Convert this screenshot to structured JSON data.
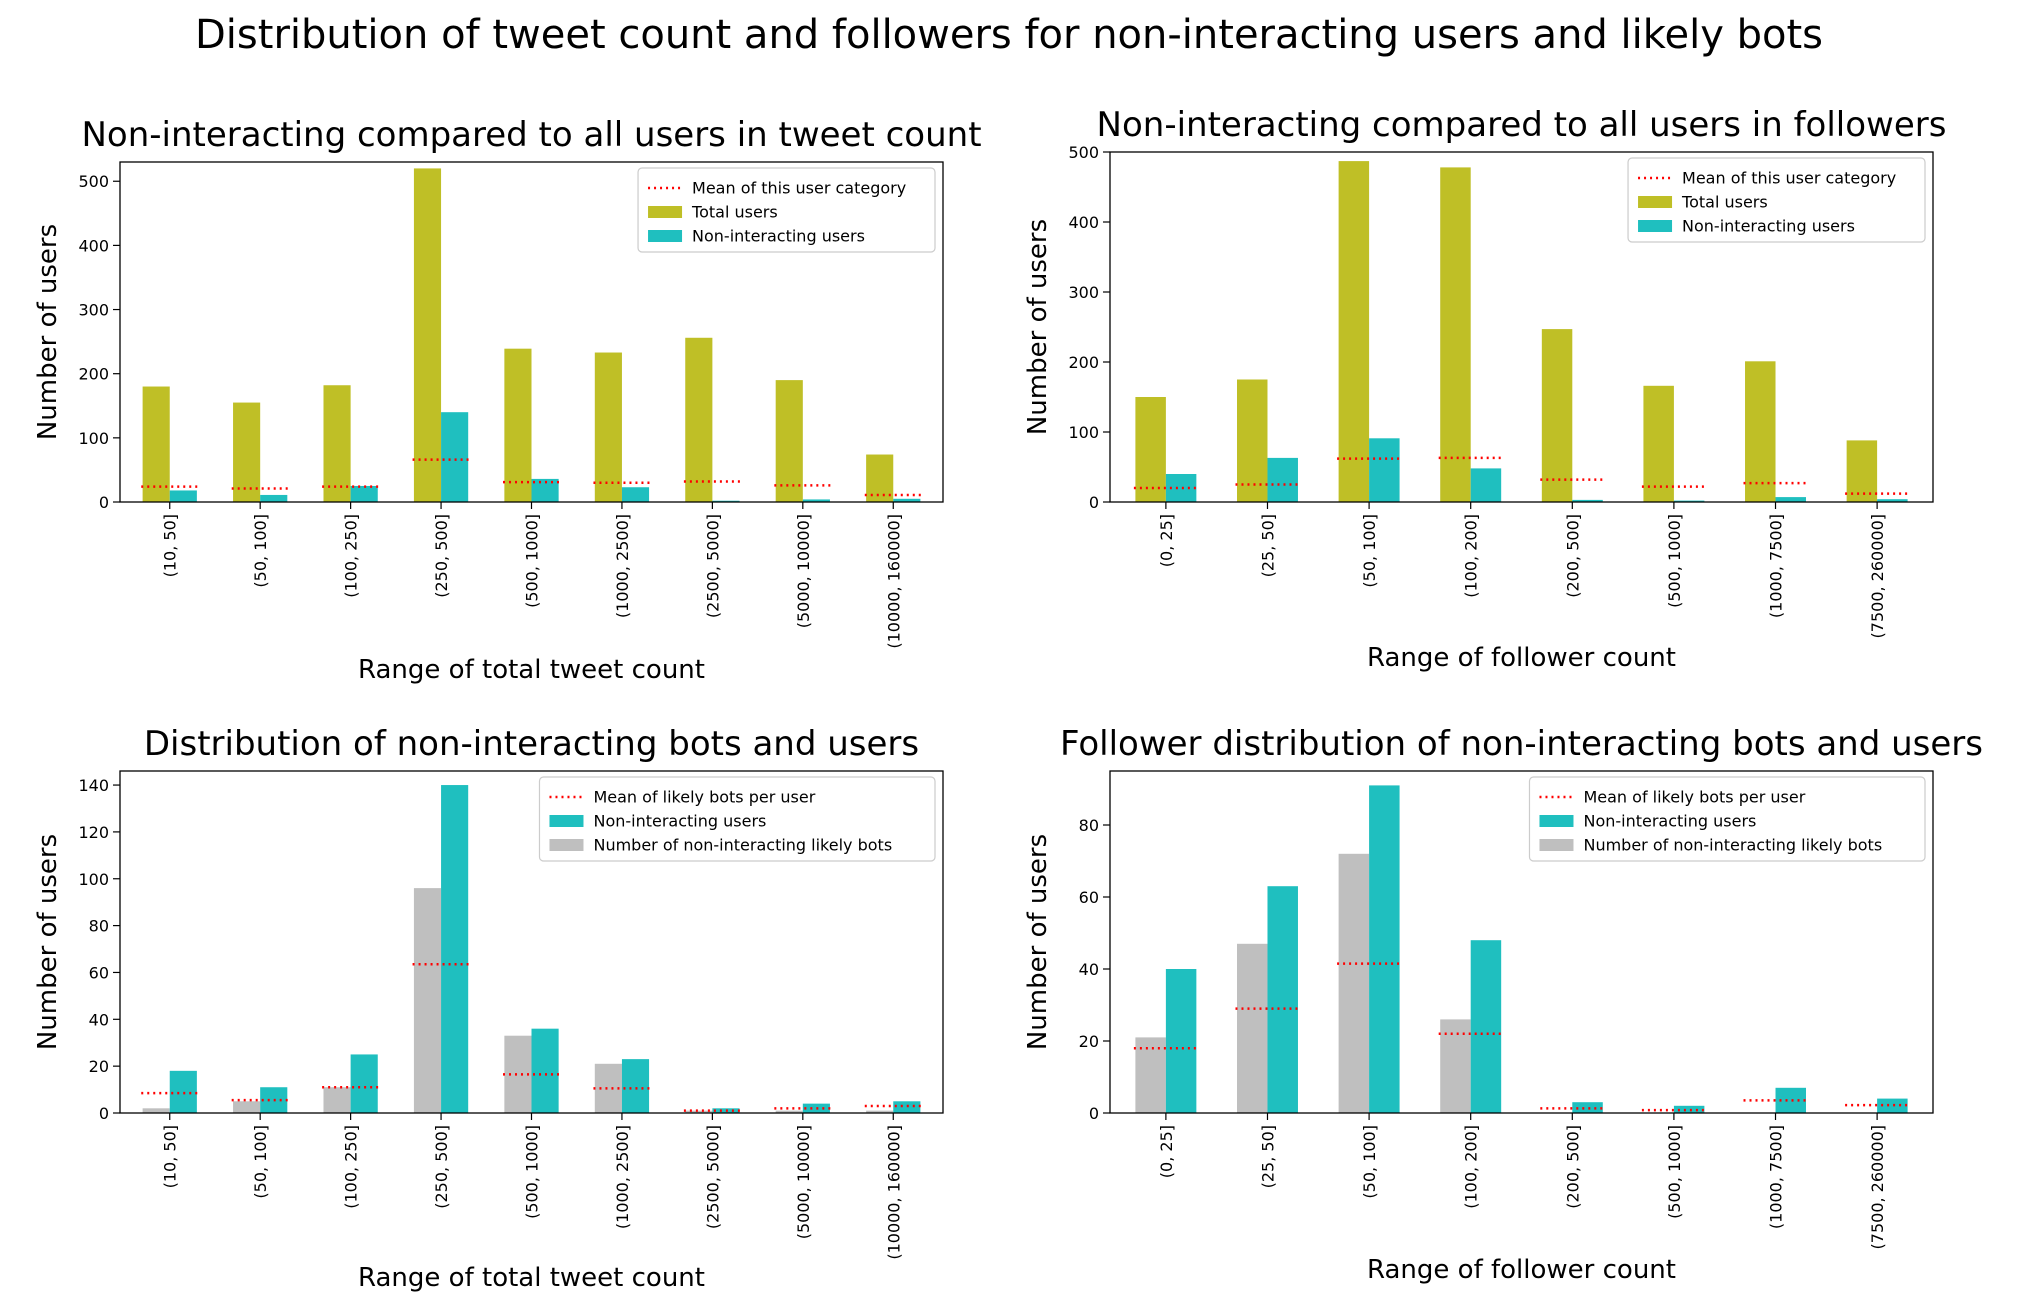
{
  "page_title": "Distribution of tweet count and followers for non-interacting users and likely bots",
  "colors": {
    "total": "#bfbf26",
    "noninteract": "#1fbfbf",
    "bots": "#bfbfbf",
    "mean": "#ff0000"
  },
  "chart_data": [
    {
      "type": "bar",
      "title": "Non-interacting compared to all users in tweet count",
      "xlabel": "Range of total tweet count",
      "ylabel": "Number of users",
      "ylim": [
        0,
        530
      ],
      "yticks": [
        0,
        100,
        200,
        300,
        400,
        500
      ],
      "legend_position": "top-right",
      "categories": [
        "(10, 50]",
        "(50, 100]",
        "(100, 250]",
        "(250, 500]",
        "(500, 1000]",
        "(1000, 2500]",
        "(2500, 5000]",
        "(5000, 10000]",
        "(10000, 160000]"
      ],
      "series": [
        {
          "name": "Total users",
          "color": "#bfbf26",
          "values": [
            180,
            155,
            182,
            520,
            239,
            233,
            256,
            190,
            74
          ]
        },
        {
          "name": "Non-interacting users",
          "color": "#1fbfbf",
          "values": [
            18,
            11,
            25,
            140,
            36,
            23,
            2,
            4,
            5
          ]
        }
      ],
      "means": {
        "name": "Mean of this user category",
        "color": "#ff0000",
        "values": [
          24,
          21,
          24,
          66,
          31,
          30,
          32,
          26,
          11
        ]
      }
    },
    {
      "type": "bar",
      "title": "Non-interacting compared to all users in followers",
      "xlabel": "Range of follower count",
      "ylabel": "Number of users",
      "ylim": [
        0,
        500
      ],
      "yticks": [
        0,
        100,
        200,
        300,
        400,
        500
      ],
      "legend_position": "top-right",
      "categories": [
        "(0, 25]",
        "(25, 50]",
        "(50, 100]",
        "(100, 200]",
        "(200, 500]",
        "(500, 1000]",
        "(1000, 7500]",
        "(7500, 260000]"
      ],
      "series": [
        {
          "name": "Total users",
          "color": "#bfbf26",
          "values": [
            150,
            175,
            487,
            478,
            247,
            166,
            201,
            88
          ]
        },
        {
          "name": "Non-interacting users",
          "color": "#1fbfbf",
          "values": [
            40,
            63,
            91,
            48,
            3,
            2,
            7,
            4
          ]
        }
      ],
      "means": {
        "name": "Mean of this user category",
        "color": "#ff0000",
        "values": [
          20,
          25,
          62,
          63,
          32,
          22,
          27,
          12
        ]
      }
    },
    {
      "type": "bar",
      "title": "Distribution of non-interacting bots and users",
      "xlabel": "Range of total tweet count",
      "ylabel": "Number of users",
      "ylim": [
        0,
        146
      ],
      "yticks": [
        0,
        20,
        40,
        60,
        80,
        100,
        120,
        140
      ],
      "legend_position": "top-right",
      "legend_order": [
        "means",
        1,
        0
      ],
      "categories": [
        "(10, 50]",
        "(50, 100]",
        "(100, 250]",
        "(250, 500]",
        "(500, 1000]",
        "(1000, 2500]",
        "(2500, 5000]",
        "(5000, 10000]",
        "(10000, 160000]"
      ],
      "series": [
        {
          "name": "Number of non-interacting likely bots",
          "color": "#bfbfbf",
          "values": [
            2,
            5,
            11,
            96,
            33,
            21,
            1,
            1,
            1
          ]
        },
        {
          "name": "Non-interacting users",
          "color": "#1fbfbf",
          "values": [
            18,
            11,
            25,
            140,
            36,
            23,
            2,
            4,
            5
          ]
        }
      ],
      "means": {
        "name": "Mean of likely bots per user",
        "color": "#ff0000",
        "values": [
          8.5,
          5.5,
          11,
          63.5,
          16.5,
          10.5,
          1,
          2,
          3
        ]
      }
    },
    {
      "type": "bar",
      "title": "Follower distribution of non-interacting bots and users",
      "xlabel": "Range of follower count",
      "ylabel": "Number of users",
      "ylim": [
        0,
        95
      ],
      "yticks": [
        0,
        20,
        40,
        60,
        80
      ],
      "legend_position": "top-right",
      "legend_order": [
        "means",
        1,
        0
      ],
      "categories": [
        "(0, 25]",
        "(25, 50]",
        "(50, 100]",
        "(100, 200]",
        "(200, 500]",
        "(500, 1000]",
        "(1000, 7500]",
        "(7500, 260000]"
      ],
      "series": [
        {
          "name": "Number of non-interacting likely bots",
          "color": "#bfbfbf",
          "values": [
            21,
            47,
            72,
            26,
            0,
            0,
            0,
            0
          ]
        },
        {
          "name": "Non-interacting users",
          "color": "#1fbfbf",
          "values": [
            40,
            63,
            91,
            48,
            3,
            2,
            7,
            4
          ]
        }
      ],
      "means": {
        "name": "Mean of likely bots per user",
        "color": "#ff0000",
        "values": [
          18,
          29,
          41.5,
          22,
          1.3,
          0.8,
          3.5,
          2.2
        ]
      }
    }
  ]
}
